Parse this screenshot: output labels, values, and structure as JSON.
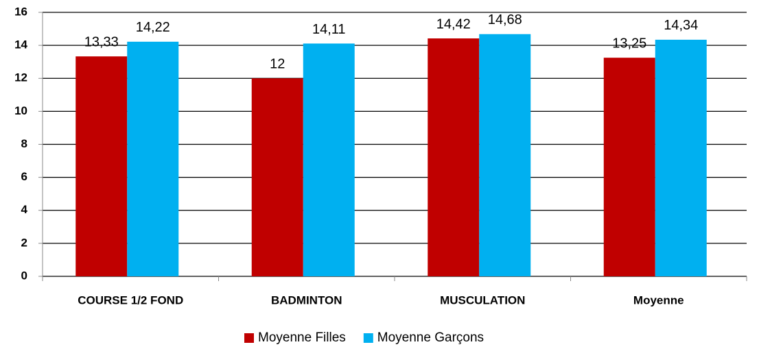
{
  "chart_data": {
    "type": "bar",
    "categories": [
      "COURSE 1/2 FOND",
      "BADMINTON",
      "MUSCULATION",
      "Moyenne"
    ],
    "series": [
      {
        "name": "Moyenne Filles",
        "color": "#c00000",
        "values": [
          13.33,
          12,
          14.42,
          13.25
        ],
        "value_labels": [
          "13,33",
          "12",
          "14,42",
          "13,25"
        ]
      },
      {
        "name": "Moyenne Garçons",
        "color": "#00b0f0",
        "values": [
          14.22,
          14.11,
          14.68,
          14.34
        ],
        "value_labels": [
          "14,22",
          "14,11",
          "14,68",
          "14,34"
        ]
      }
    ],
    "ylim": [
      0,
      16
    ],
    "yticks": [
      0,
      2,
      4,
      6,
      8,
      10,
      12,
      14,
      16
    ],
    "grid": true,
    "legend": "bottom"
  }
}
